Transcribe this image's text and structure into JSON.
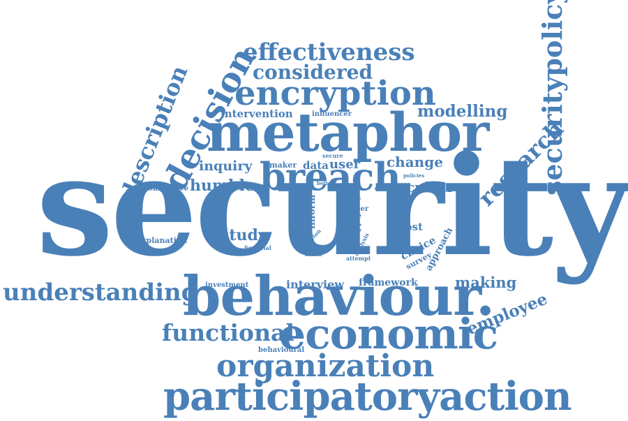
{
  "color": "#4a80b8",
  "words": {
    "security": "security",
    "behaviour": "behaviour.",
    "participatoryaction": "participatoryaction",
    "metaphor": "metaphor",
    "economic": "economic",
    "organization": "organization",
    "breach": "breach",
    "encryption": "encryption",
    "effectiveness": "effectiveness",
    "considered": "considered",
    "decision": "decision",
    "description": "description",
    "securitypolicy": "securitypolicy",
    "research": "research",
    "understanding": "understanding",
    "functional": "functional",
    "employee": "employee",
    "making": "making",
    "modelling": "modelling",
    "humble": "humble",
    "inquiry": "inquiry",
    "study": "study",
    "culture": "culture",
    "change": "change",
    "data": "data",
    "user": "user",
    "intervention": "intervention",
    "interview": "interview",
    "framework": "framework",
    "post": "post",
    "choice": "choice",
    "survey": "survey",
    "approach": "approach",
    "explanation": "explanation",
    "compliance": "compliance",
    "investment": "investment",
    "behavioural": "behavioural",
    "financial": "financial",
    "maker": "maker",
    "influencer": "influencer",
    "secure": "secure",
    "policies": "policies",
    "better": "better",
    "present": "present",
    "inform": "inform",
    "paper": "paper",
    "case": "case",
    "support": "support",
    "friction": "friction",
    "related": "related",
    "action": "action",
    "analysis": "analysis",
    "attempt": "attempt",
    "level": "level",
    "fault": "fault",
    "left": "left",
    "use": "use"
  }
}
